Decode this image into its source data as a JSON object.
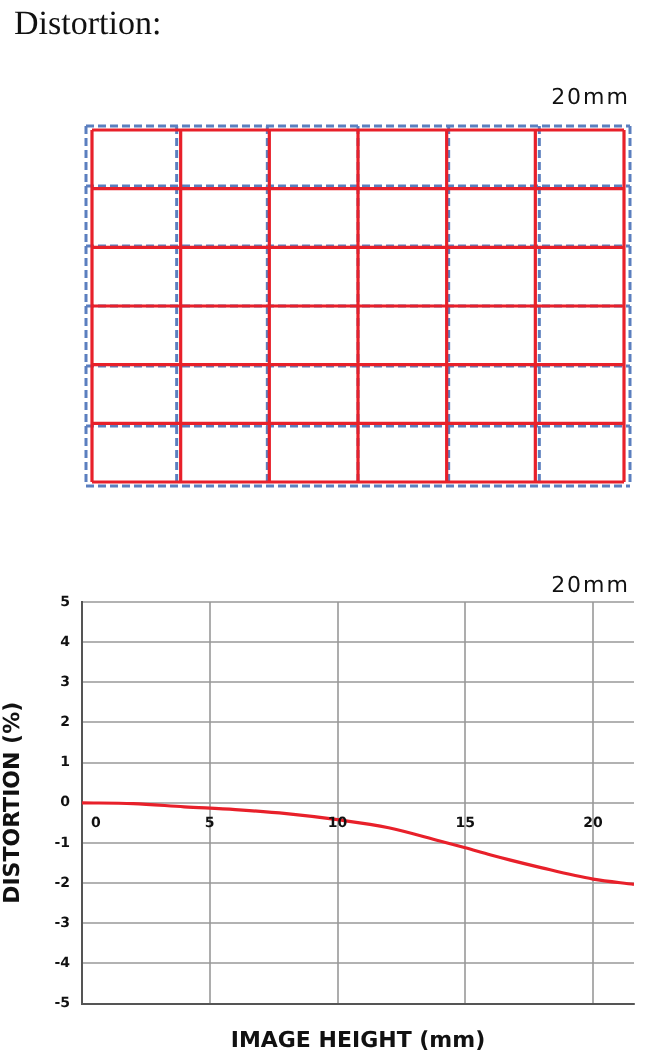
{
  "chart_data": {
    "type": "line",
    "title": "Distortion:",
    "annotations": [
      "20mm",
      "20mm"
    ],
    "xlabel": "IMAGE HEIGHT (mm)",
    "ylabel": "DISTORTION (%)",
    "x": [
      0,
      2,
      4,
      6,
      8,
      10,
      12,
      14,
      15,
      16,
      18,
      20,
      21.6
    ],
    "series": [
      {
        "color": "#e8202a",
        "values": [
          0,
          -0.02,
          -0.1,
          -0.17,
          -0.27,
          -0.42,
          -0.62,
          -0.95,
          -1.12,
          -1.3,
          -1.62,
          -1.9,
          -2.03
        ]
      }
    ],
    "xlim": [
      0,
      21.6
    ],
    "xticks": [
      0,
      5,
      10,
      15,
      20
    ],
    "ylim": [
      -5,
      5
    ],
    "yticks": [
      -5,
      -4,
      -3,
      -2,
      -1,
      0,
      1,
      2,
      3,
      4,
      5
    ],
    "grid": true,
    "legend": false,
    "marker": "none",
    "line_style": "solid"
  }
}
